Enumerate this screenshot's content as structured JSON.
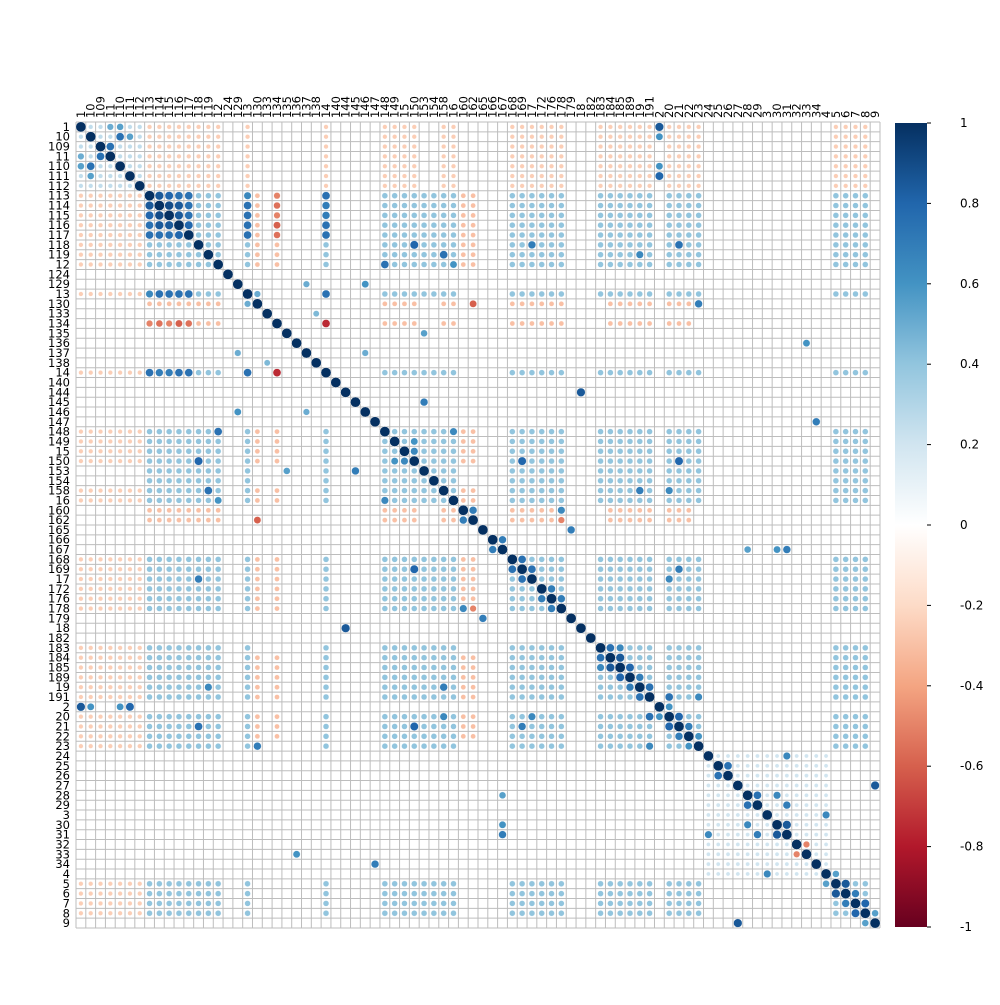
{
  "chart_data": {
    "type": "heatmap",
    "subtype": "correlation-circle-matrix",
    "variables": [
      "1",
      "10",
      "109",
      "11",
      "110",
      "111",
      "112",
      "113",
      "114",
      "115",
      "116",
      "117",
      "118",
      "119",
      "12",
      "124",
      "129",
      "13",
      "130",
      "133",
      "134",
      "135",
      "136",
      "137",
      "138",
      "14",
      "140",
      "144",
      "145",
      "146",
      "147",
      "148",
      "149",
      "15",
      "150",
      "153",
      "154",
      "158",
      "16",
      "160",
      "162",
      "165",
      "166",
      "167",
      "168",
      "169",
      "17",
      "172",
      "176",
      "178",
      "179",
      "18",
      "182",
      "183",
      "184",
      "185",
      "189",
      "19",
      "191",
      "2",
      "20",
      "21",
      "22",
      "23",
      "24",
      "25",
      "26",
      "27",
      "28",
      "29",
      "3",
      "30",
      "31",
      "32",
      "33",
      "34",
      "4",
      "5",
      "6",
      "7",
      "8",
      "9"
    ],
    "value_range": [
      -1,
      1
    ],
    "colorbar": {
      "ticks": [
        "1",
        "0.8",
        "0.6",
        "0.4",
        "0.2",
        "0",
        "-0.2",
        "-0.4",
        "-0.6",
        "-0.8",
        "-1"
      ],
      "tick_values": [
        1,
        0.8,
        0.6,
        0.4,
        0.2,
        0,
        -0.2,
        -0.4,
        -0.6,
        -0.8,
        -1
      ],
      "colormap": "RdBu diverging",
      "color_stops": [
        "#67001F",
        "#B2182B",
        "#D6604D",
        "#F4A582",
        "#FDDBC7",
        "#FFFFFF",
        "#D1E5F0",
        "#92C5DE",
        "#4393C3",
        "#2166AC",
        "#053061"
      ]
    },
    "diagonal_value": 1,
    "notable_correlations": [
      {
        "a": "1",
        "b": "2",
        "r": 0.85
      },
      {
        "a": "1",
        "b": "11",
        "r": 0.5
      },
      {
        "a": "1",
        "b": "110",
        "r": 0.55
      },
      {
        "a": "10",
        "b": "110",
        "r": 0.75
      },
      {
        "a": "10",
        "b": "111",
        "r": 0.55
      },
      {
        "a": "10",
        "b": "2",
        "r": 0.6
      },
      {
        "a": "109",
        "b": "11",
        "r": 0.75
      },
      {
        "a": "110",
        "b": "2",
        "r": 0.6
      },
      {
        "a": "111",
        "b": "2",
        "r": 0.8
      },
      {
        "a": "113",
        "b": "114",
        "r": 0.85
      },
      {
        "a": "113",
        "b": "115",
        "r": 0.8
      },
      {
        "a": "113",
        "b": "116",
        "r": 0.75
      },
      {
        "a": "114",
        "b": "115",
        "r": 0.9
      },
      {
        "a": "114",
        "b": "116",
        "r": 0.85
      },
      {
        "a": "115",
        "b": "116",
        "r": 0.85
      },
      {
        "a": "116",
        "b": "117",
        "r": 0.8
      },
      {
        "a": "114",
        "b": "117",
        "r": 0.75
      },
      {
        "a": "113",
        "b": "13",
        "r": 0.65
      },
      {
        "a": "114",
        "b": "14",
        "r": 0.7
      },
      {
        "a": "115",
        "b": "14",
        "r": 0.7
      },
      {
        "a": "113",
        "b": "134",
        "r": -0.5
      },
      {
        "a": "114",
        "b": "134",
        "r": -0.55
      },
      {
        "a": "115",
        "b": "134",
        "r": -0.5
      },
      {
        "a": "116",
        "b": "134",
        "r": -0.6
      },
      {
        "a": "117",
        "b": "134",
        "r": -0.55
      },
      {
        "a": "118",
        "b": "150",
        "r": 0.8
      },
      {
        "a": "118",
        "b": "17",
        "r": 0.7
      },
      {
        "a": "118",
        "b": "21",
        "r": 0.75
      },
      {
        "a": "119",
        "b": "158",
        "r": 0.75
      },
      {
        "a": "119",
        "b": "19",
        "r": 0.65
      },
      {
        "a": "12",
        "b": "148",
        "r": 0.75
      },
      {
        "a": "12",
        "b": "16",
        "r": 0.6
      },
      {
        "a": "129",
        "b": "137",
        "r": 0.5
      },
      {
        "a": "129",
        "b": "146",
        "r": 0.6
      },
      {
        "a": "13",
        "b": "14",
        "r": 0.75
      },
      {
        "a": "13",
        "b": "130",
        "r": 0.5
      },
      {
        "a": "130",
        "b": "23",
        "r": 0.7
      },
      {
        "a": "130",
        "b": "162",
        "r": -0.6
      },
      {
        "a": "133",
        "b": "138",
        "r": 0.45
      },
      {
        "a": "134",
        "b": "14",
        "r": -0.75
      },
      {
        "a": "135",
        "b": "153",
        "r": 0.55
      },
      {
        "a": "136",
        "b": "33",
        "r": 0.6
      },
      {
        "a": "137",
        "b": "146",
        "r": 0.5
      },
      {
        "a": "144",
        "b": "18",
        "r": 0.85
      },
      {
        "a": "145",
        "b": "153",
        "r": 0.7
      },
      {
        "a": "147",
        "b": "34",
        "r": 0.7
      },
      {
        "a": "148",
        "b": "16",
        "r": 0.65
      },
      {
        "a": "149",
        "b": "150",
        "r": 0.6
      },
      {
        "a": "15",
        "b": "150",
        "r": 0.65
      },
      {
        "a": "150",
        "b": "169",
        "r": 0.8
      },
      {
        "a": "150",
        "b": "21",
        "r": 0.8
      },
      {
        "a": "158",
        "b": "19",
        "r": 0.7
      },
      {
        "a": "158",
        "b": "20",
        "r": 0.65
      },
      {
        "a": "160",
        "b": "162",
        "r": 0.7
      },
      {
        "a": "160",
        "b": "178",
        "r": 0.65
      },
      {
        "a": "162",
        "b": "178",
        "r": -0.5
      },
      {
        "a": "165",
        "b": "179",
        "r": 0.7
      },
      {
        "a": "166",
        "b": "167",
        "r": 0.7
      },
      {
        "a": "167",
        "b": "28",
        "r": 0.55
      },
      {
        "a": "167",
        "b": "30",
        "r": 0.6
      },
      {
        "a": "167",
        "b": "31",
        "r": 0.7
      },
      {
        "a": "168",
        "b": "169",
        "r": 0.75
      },
      {
        "a": "169",
        "b": "17",
        "r": 0.75
      },
      {
        "a": "169",
        "b": "21",
        "r": 0.7
      },
      {
        "a": "17",
        "b": "20",
        "r": 0.65
      },
      {
        "a": "172",
        "b": "176",
        "r": 0.7
      },
      {
        "a": "176",
        "b": "178",
        "r": 0.7
      },
      {
        "a": "183",
        "b": "184",
        "r": 0.75
      },
      {
        "a": "183",
        "b": "185",
        "r": 0.65
      },
      {
        "a": "184",
        "b": "185",
        "r": 0.85
      },
      {
        "a": "185",
        "b": "189",
        "r": 0.8
      },
      {
        "a": "189",
        "b": "19",
        "r": 0.7
      },
      {
        "a": "19",
        "b": "191",
        "r": 0.75
      },
      {
        "a": "191",
        "b": "20",
        "r": 0.75
      },
      {
        "a": "191",
        "b": "23",
        "r": 0.65
      },
      {
        "a": "2",
        "b": "20",
        "r": 0.6
      },
      {
        "a": "20",
        "b": "21",
        "r": 0.8
      },
      {
        "a": "21",
        "b": "22",
        "r": 0.7
      },
      {
        "a": "22",
        "b": "23",
        "r": 0.6
      },
      {
        "a": "24",
        "b": "31",
        "r": 0.65
      },
      {
        "a": "25",
        "b": "26",
        "r": 0.75
      },
      {
        "a": "27",
        "b": "9",
        "r": 0.85
      },
      {
        "a": "28",
        "b": "29",
        "r": 0.75
      },
      {
        "a": "28",
        "b": "30",
        "r": 0.65
      },
      {
        "a": "29",
        "b": "31",
        "r": 0.7
      },
      {
        "a": "3",
        "b": "4",
        "r": 0.65
      },
      {
        "a": "30",
        "b": "31",
        "r": 0.85
      },
      {
        "a": "32",
        "b": "33",
        "r": -0.5
      },
      {
        "a": "4",
        "b": "5",
        "r": 0.55
      },
      {
        "a": "5",
        "b": "6",
        "r": 0.85
      },
      {
        "a": "6",
        "b": "7",
        "r": 0.7
      },
      {
        "a": "7",
        "b": "8",
        "r": 0.8
      },
      {
        "a": "8",
        "b": "9",
        "r": 0.55
      }
    ],
    "groups": [
      {
        "vars": [
          "113",
          "114",
          "115",
          "116",
          "117",
          "118",
          "119",
          "12",
          "13",
          "14",
          "148",
          "149",
          "15",
          "150",
          "153",
          "154",
          "158",
          "16",
          "168",
          "169",
          "17",
          "172",
          "176",
          "178",
          "183",
          "184",
          "185",
          "189",
          "19",
          "191",
          "20",
          "21",
          "22",
          "23",
          "5",
          "6",
          "7",
          "8"
        ],
        "typical_r": 0.4
      },
      {
        "vars": [
          "113",
          "114",
          "115",
          "116",
          "117",
          "13",
          "14"
        ],
        "typical_r": 0.75
      },
      {
        "vars": [
          "1",
          "10",
          "109",
          "11",
          "110",
          "111",
          "112"
        ],
        "typical_r": 0.25
      },
      {
        "vars": [
          "24",
          "25",
          "26",
          "27",
          "28",
          "29",
          "3",
          "30",
          "31",
          "32",
          "33",
          "34",
          "4"
        ],
        "typical_r": 0.2
      }
    ],
    "negative_links": [
      {
        "vars_a": [
          "1",
          "10",
          "109",
          "11",
          "110",
          "111",
          "112"
        ],
        "vars_b": [
          "113",
          "114",
          "115",
          "116",
          "117",
          "118",
          "119",
          "12",
          "13",
          "14",
          "148",
          "149",
          "15",
          "150",
          "158",
          "16",
          "168",
          "169",
          "17",
          "172",
          "176",
          "178",
          "183",
          "184",
          "185",
          "189",
          "19",
          "191",
          "20",
          "21",
          "22",
          "23",
          "5",
          "6",
          "7",
          "8"
        ],
        "typical_r": -0.25
      },
      {
        "vars_a": [
          "130",
          "134",
          "160",
          "162"
        ],
        "vars_b": [
          "113",
          "114",
          "115",
          "116",
          "117",
          "118",
          "119",
          "12",
          "148",
          "149",
          "15",
          "150",
          "158",
          "16",
          "168",
          "169",
          "17",
          "172",
          "176",
          "178",
          "184",
          "185",
          "189",
          "19",
          "191",
          "20",
          "21",
          "22"
        ],
        "typical_r": -0.3
      }
    ]
  }
}
